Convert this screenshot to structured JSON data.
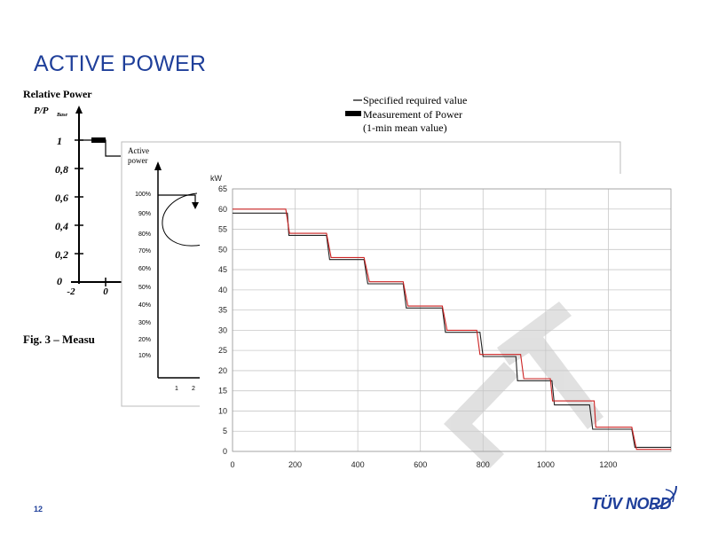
{
  "slide": {
    "title": "ACTIVE POWER",
    "page_number": "12",
    "logo_text": "TÜV NORD"
  },
  "back_figure": {
    "ylabel": "Relative Power",
    "ysub_main": "P/P",
    "ysub_sub": "Base",
    "y_ticks": [
      "1",
      "0,8",
      "0,6",
      "0,4",
      "0,2",
      "0"
    ],
    "x_ticks": [
      "-2",
      "0"
    ],
    "legend_specified": "Specified required value",
    "legend_measured": "Measurement of Power",
    "legend_measured_sub": "(1-min mean value)",
    "caption": "Fig. 3 – Measu"
  },
  "middle_figure": {
    "ylabel_line1": "Active",
    "ylabel_line2": "power",
    "y_ticks": [
      "100%",
      "90%",
      "80%",
      "70%",
      "60%",
      "50%",
      "40%",
      "30%",
      "20%",
      "10%"
    ],
    "x_ticks": [
      "1",
      "2"
    ]
  },
  "colors": {
    "title": "#1f3f9a",
    "measured": "#cc2222",
    "specified": "#222222",
    "grid": "#c8c8c8",
    "watermark": "#c8c8c8"
  },
  "chart_data": {
    "type": "line",
    "title": "",
    "xlabel": "",
    "ylabel": "kW",
    "xlim": [
      0,
      1400
    ],
    "ylim": [
      0,
      65
    ],
    "x_ticks": [
      0,
      200,
      400,
      600,
      800,
      1000,
      1200
    ],
    "y_ticks": [
      0,
      5,
      10,
      15,
      20,
      25,
      30,
      35,
      40,
      45,
      50,
      55,
      60,
      65
    ],
    "grid": true,
    "series": [
      {
        "color": "#222222",
        "x": [
          0,
          175,
          180,
          300,
          310,
          420,
          432,
          545,
          555,
          670,
          680,
          790,
          800,
          905,
          910,
          1020,
          1028,
          1140,
          1150,
          1275,
          1285,
          1400
        ],
        "y": [
          59,
          59,
          53.5,
          53.5,
          47.5,
          47.5,
          41.5,
          41.5,
          35.5,
          35.5,
          29.5,
          29.5,
          23.5,
          23.5,
          17.5,
          17.5,
          11.5,
          11.5,
          5.5,
          5.5,
          1,
          1
        ]
      },
      {
        "color": "#cc2222",
        "x": [
          0,
          170,
          182,
          300,
          315,
          420,
          437,
          545,
          560,
          670,
          685,
          780,
          790,
          920,
          930,
          1015,
          1022,
          1155,
          1160,
          1275,
          1290,
          1400
        ],
        "y": [
          60,
          60,
          54,
          54,
          48,
          48,
          42,
          42,
          36,
          36,
          30,
          30,
          24,
          24,
          18,
          18,
          12.5,
          12.5,
          6,
          6,
          0.5,
          0.5
        ]
      }
    ]
  }
}
